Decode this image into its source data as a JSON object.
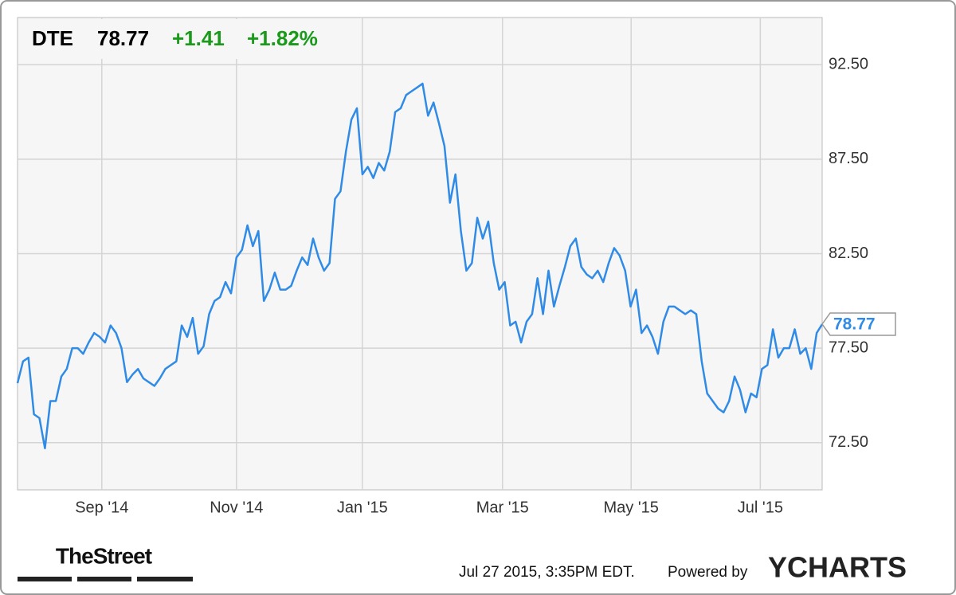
{
  "chart_data": {
    "type": "line",
    "ticker": "DTE",
    "price": 78.77,
    "change": "+1.41",
    "change_pct": "+1.82%",
    "timestamp": "Jul 27 2015, 3:35PM EDT.",
    "powered_by": "Powered by",
    "brand": "YCHARTS",
    "source_logo": "TheStreet",
    "grid": true,
    "ylim": [
      70,
      95
    ],
    "yticks": [
      {
        "value": 72.5,
        "label": "72.50"
      },
      {
        "value": 77.5,
        "label": "77.50"
      },
      {
        "value": 82.5,
        "label": "82.50"
      },
      {
        "value": 87.5,
        "label": "87.50"
      },
      {
        "value": 92.5,
        "label": "92.50"
      }
    ],
    "xlim": [
      0,
      147
    ],
    "xticks": [
      {
        "value": 15.4,
        "label": "Sep '14"
      },
      {
        "value": 40,
        "label": "Nov '14"
      },
      {
        "value": 63,
        "label": "Jan '15"
      },
      {
        "value": 88.6,
        "label": "Mar '15"
      },
      {
        "value": 112.1,
        "label": "May '15"
      },
      {
        "value": 135.7,
        "label": "Jul '15"
      }
    ],
    "series": [
      {
        "name": "DTE",
        "color": "#2f8be6",
        "values": [
          75.65,
          76.8,
          77.0,
          74.0,
          73.8,
          72.2,
          74.7,
          74.7,
          76.0,
          76.4,
          77.5,
          77.5,
          77.2,
          77.8,
          78.3,
          78.1,
          77.8,
          78.7,
          78.3,
          77.5,
          75.7,
          76.1,
          76.4,
          75.9,
          75.7,
          75.5,
          75.9,
          76.4,
          76.6,
          76.8,
          78.7,
          78.1,
          79.1,
          77.2,
          77.6,
          79.3,
          80.0,
          80.2,
          81.0,
          80.4,
          82.3,
          82.7,
          84.0,
          82.9,
          83.7,
          80.0,
          80.6,
          81.5,
          80.6,
          80.6,
          80.8,
          81.6,
          82.3,
          81.9,
          83.3,
          82.3,
          81.6,
          82.0,
          85.4,
          85.8,
          87.9,
          89.6,
          90.2,
          86.7,
          87.1,
          86.5,
          87.3,
          86.9,
          87.9,
          90.0,
          90.2,
          90.9,
          91.1,
          91.3,
          91.5,
          89.8,
          90.5,
          89.4,
          88.2,
          85.2,
          86.7,
          83.7,
          81.6,
          82.0,
          84.4,
          83.3,
          84.2,
          82.0,
          80.6,
          81.0,
          78.7,
          78.9,
          77.8,
          78.9,
          79.3,
          81.2,
          79.3,
          81.6,
          79.7,
          80.8,
          81.8,
          82.9,
          83.3,
          81.8,
          81.4,
          81.2,
          81.6,
          81.0,
          82.0,
          82.8,
          82.4,
          81.6,
          79.7,
          80.6,
          78.3,
          78.7,
          78.1,
          77.2,
          78.9,
          79.7,
          79.7,
          79.5,
          79.3,
          79.5,
          79.3,
          76.8,
          75.1,
          74.7,
          74.3,
          74.1,
          74.7,
          76.0,
          75.3,
          74.1,
          75.1,
          74.9,
          76.4,
          76.6,
          78.5,
          77.0,
          77.5,
          77.5,
          78.5,
          77.2,
          77.5,
          76.4,
          78.3,
          78.77
        ]
      }
    ]
  }
}
